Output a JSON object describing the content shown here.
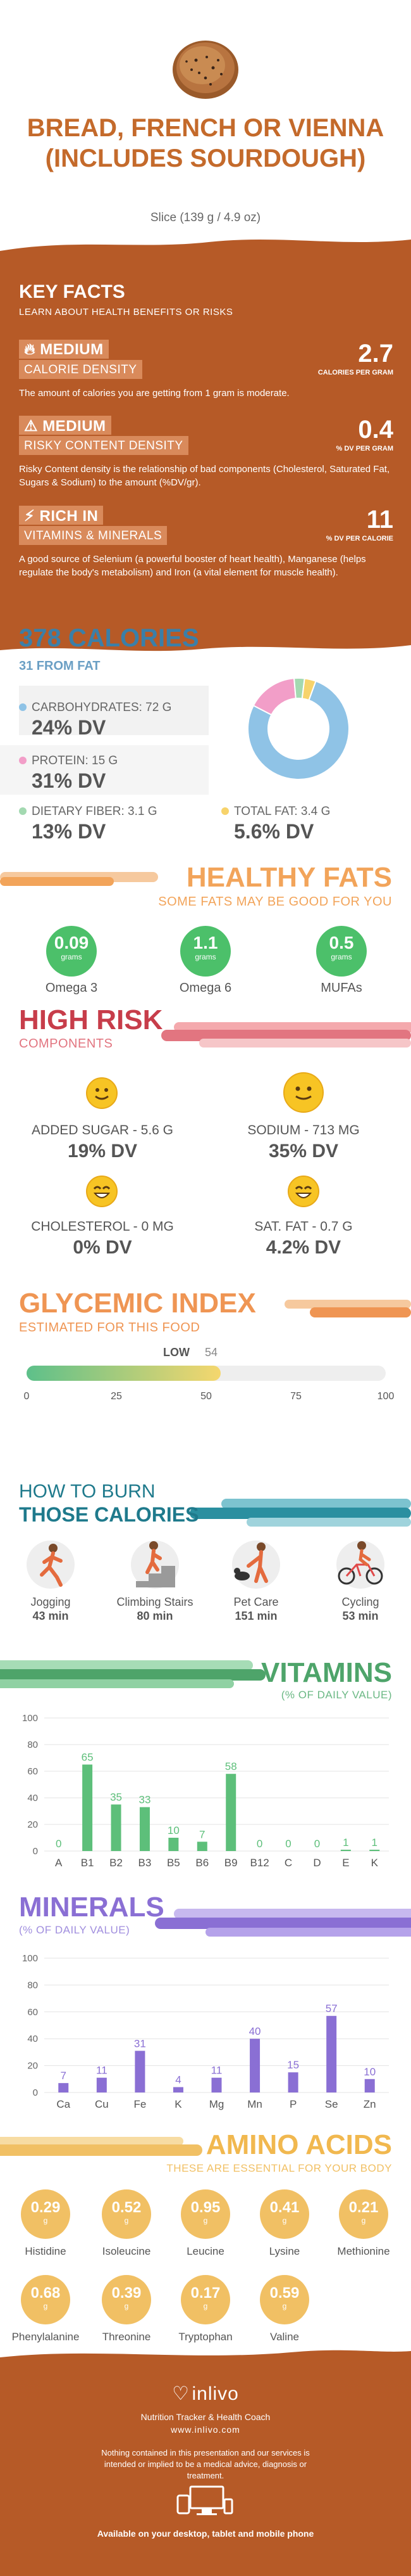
{
  "header": {
    "title": "Bread, French or Vienna (includes sourdough)",
    "serving": "Slice (139 g / 4.9 oz)"
  },
  "key_facts": {
    "title": "KEY FACTS",
    "subtitle": "LEARN ABOUT HEALTH BENEFITS OR RISKS",
    "items": [
      {
        "level": "MEDIUM",
        "name": "CALORIE DENSITY",
        "value": "2.7",
        "unit": "CALORIES PER GRAM",
        "desc": "The amount of calories you are getting from 1 gram is moderate."
      },
      {
        "level": "MEDIUM",
        "name": "RISKY CONTENT DENSITY",
        "value": "0.4",
        "unit": "% DV PER GRAM",
        "desc": "Risky Content density is the relationship of bad components (Cholesterol, Saturated Fat, Sugars & Sodium) to the amount (%DV/gr)."
      },
      {
        "level": "RICH IN",
        "name": "VITAMINS & MINERALS",
        "value": "11",
        "unit": "% DV PER CALORIE",
        "desc": "A good source of Selenium (a powerful booster of heart health), Manganese (helps regulate the body's metabolism) and Iron (a vital element for muscle health)."
      }
    ]
  },
  "calories": {
    "title": "378 CALORIES",
    "subtitle": "31 FROM FAT",
    "macros": [
      {
        "label": "CARBOHYDRATES: 72 g",
        "dv": "24% DV",
        "color": "#8fc3e6"
      },
      {
        "label": "PROTEIN: 15 g",
        "dv": "31% DV",
        "color": "#f29ec8"
      },
      {
        "label": "DIETARY FIBER: 3.1 g",
        "dv": "13% DV",
        "color": "#a3d9b1"
      },
      {
        "label": "TOTAL FAT: 3.4 g",
        "dv": "5.6% DV",
        "color": "#f7d36b"
      }
    ],
    "donut": [
      {
        "name": "carbs",
        "value": 72,
        "color": "#8fc3e6"
      },
      {
        "name": "protein",
        "value": 15,
        "color": "#f29ec8"
      },
      {
        "name": "fiber",
        "value": 3.1,
        "color": "#a3d9b1"
      },
      {
        "name": "fat",
        "value": 3.4,
        "color": "#f7d36b"
      }
    ]
  },
  "healthy_fats": {
    "title": "HEALTHY FATS",
    "subtitle": "SOME FATS MAY BE GOOD FOR YOU",
    "unit": "grams",
    "items": [
      {
        "value": "0.09",
        "name": "Omega 3"
      },
      {
        "value": "1.1",
        "name": "Omega 6"
      },
      {
        "value": "0.5",
        "name": "MUFAs"
      }
    ]
  },
  "high_risk": {
    "title": "HIGH RISK",
    "subtitle": "COMPONENTS",
    "items": [
      {
        "label": "ADDED SUGAR - 5.6 g",
        "dv": "19% DV"
      },
      {
        "label": "SODIUM - 713 mg",
        "dv": "35% DV"
      },
      {
        "label": "CHOLESTEROL - 0 mg",
        "dv": "0% DV"
      },
      {
        "label": "SAT. FAT - 0.7 g",
        "dv": "4.2% DV"
      }
    ]
  },
  "glycemic": {
    "title": "GLYCEMIC INDEX",
    "subtitle": "ESTIMATED FOR THIS FOOD",
    "level": "LOW",
    "value": 54,
    "value_text": "54",
    "ticks": [
      "0",
      "25",
      "50",
      "75",
      "100"
    ]
  },
  "burn": {
    "title_top": "HOW TO BURN",
    "title_bottom": "THOSE CALORIES",
    "activities": [
      {
        "name": "Jogging",
        "minutes": "43 min"
      },
      {
        "name": "Climbing Stairs",
        "minutes": "80 min"
      },
      {
        "name": "Pet Care",
        "minutes": "151 min"
      },
      {
        "name": "Cycling",
        "minutes": "53 min"
      }
    ]
  },
  "vitamins": {
    "title": "VITAMINS",
    "subtitle": "(% OF DAILY VALUE)"
  },
  "minerals": {
    "title": "MINERALS",
    "subtitle": "(% OF DAILY VALUE)"
  },
  "chart_data": [
    {
      "type": "bar",
      "categories": [
        "A",
        "B1",
        "B2",
        "B3",
        "B5",
        "B6",
        "B9",
        "B12",
        "C",
        "D",
        "E",
        "K"
      ],
      "values": [
        0,
        65,
        35,
        33,
        10,
        7,
        58,
        0,
        0,
        0,
        1,
        1
      ],
      "ylim": [
        0,
        100
      ],
      "yticks": [
        "0",
        "20",
        "40",
        "60",
        "80",
        "100"
      ],
      "color": "#5dbf7a"
    },
    {
      "type": "bar",
      "categories": [
        "Ca",
        "Cu",
        "Fe",
        "K",
        "Mg",
        "Mn",
        "P",
        "Se",
        "Zn"
      ],
      "values": [
        7,
        11,
        31,
        4,
        11,
        40,
        15,
        57,
        10
      ],
      "ylim": [
        0,
        100
      ],
      "yticks": [
        "0",
        "20",
        "40",
        "60",
        "80",
        "100"
      ],
      "color": "#8a6fd4"
    }
  ],
  "amino": {
    "title": "AMINO ACIDS",
    "subtitle": "THESE ARE ESSENTIAL FOR YOUR BODY",
    "unit": "g",
    "items": [
      {
        "value": "0.29",
        "name": "Histidine"
      },
      {
        "value": "0.52",
        "name": "Isoleucine"
      },
      {
        "value": "0.95",
        "name": "Leucine"
      },
      {
        "value": "0.41",
        "name": "Lysine"
      },
      {
        "value": "0.21",
        "name": "Methionine"
      },
      {
        "value": "0.68",
        "name": "Phenylalanine"
      },
      {
        "value": "0.39",
        "name": "Threonine"
      },
      {
        "value": "0.17",
        "name": "Tryptophan"
      },
      {
        "value": "0.59",
        "name": "Valine"
      }
    ]
  },
  "footer": {
    "brand": "inlivo",
    "tagline": "Nutrition Tracker & Health Coach",
    "url": "www.inlivo.com",
    "disclaimer": "Nothing contained in this presentation and our services is intended or implied to be a medical advice, diagnosis or treatment.",
    "platforms": "Available on your desktop, tablet and mobile phone"
  },
  "colors": {
    "brand_orange": "#b65a27",
    "title_orange": "#c46a2b",
    "calorie_blue": "#3b7fa8",
    "healthy_orange": "#f2a45a",
    "risk_red": "#c73d4a",
    "glycemic_orange": "#ef9553",
    "vitamin_green": "#4ea46a",
    "mineral_purple": "#8a6fd4",
    "amino_yellow": "#f1c064"
  }
}
